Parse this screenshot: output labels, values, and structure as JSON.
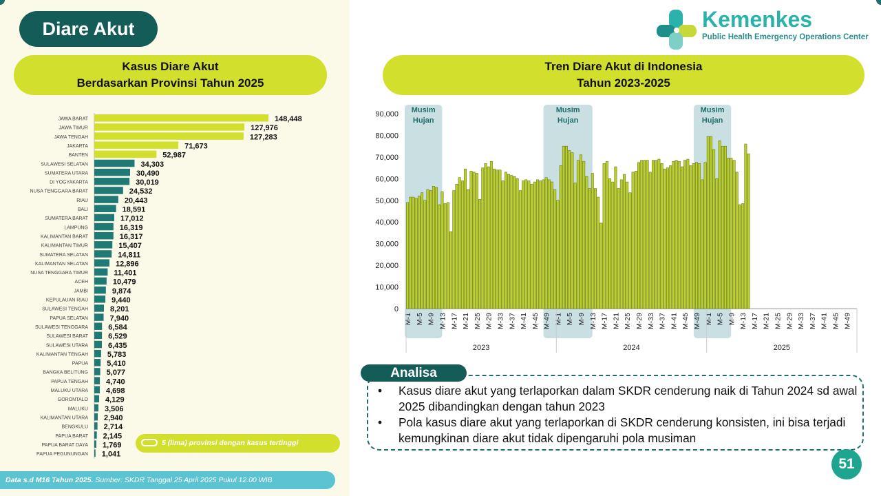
{
  "page": {
    "title": "Diare Akut",
    "page_number": "51"
  },
  "logo": {
    "name": "Kemenkes",
    "tagline": "Public Health Emergency Operations Center"
  },
  "left_chart": {
    "title_line1": "Kasus Diare Akut",
    "title_line2": "Berdasarkan Provinsi Tahun 2025"
  },
  "right_chart": {
    "title_line1": "Tren Diare Akut di Indonesia",
    "title_line2": "Tahun 2023-2025"
  },
  "legend": {
    "text": "5 (lima) provinsi dengan kasus tertinggi"
  },
  "footer": {
    "bold": "Data s.d M16 Tahun 2025.",
    "rest": " Sumber: SKDR Tanggal 25 April 2025 Pukul 12.00 WIB"
  },
  "analysis": {
    "title": "Analisa",
    "items": [
      "Kasus diare akut yang terlaporkan dalam SKDR cenderung naik di Tahun 2024 sd awal 2025 dibandingkan dengan tahun 2023",
      "Pola kasus diare akut yang terlaporkan di SKDR cenderung konsisten, ini bisa terjadi kemungkinan diare akut tidak dipengaruhi pola musiman"
    ]
  },
  "colors": {
    "teal_dark": "#135c58",
    "teal": "#1f7a76",
    "lime": "#d2e02d",
    "bar_green": "#bccf2a",
    "footer_blue": "#5bc3d1",
    "season_band": "#c9dfe2"
  },
  "chart_data": [
    {
      "type": "bar",
      "orientation": "horizontal",
      "categories": [
        "JAWA BARAT",
        "JAWA TIMUR",
        "JAWA TENGAH",
        "JAKARTA",
        "BANTEN",
        "SULAWESI SELATAN",
        "SUMATERA UTARA",
        "DI YOGYAKARTA",
        "NUSA TENGGARA BARAT",
        "RIAU",
        "BALI",
        "SUMATERA BARAT",
        "LAMPUNG",
        "KALIMANTAN BARAT",
        "KALIMANTAN TIMUR",
        "SUMATERA SELATAN",
        "KALIMANTAN SELATAN",
        "NUSA TENGGARA TIMUR",
        "ACEH",
        "JAMBI",
        "KEPULAUAN RIAU",
        "SULAWESI TENGAH",
        "PAPUA SELATAN",
        "SULAWESI TENGGARA",
        "SULAWESI BARAT",
        "SULAWESI UTARA",
        "KALIMANTAN TENGAH",
        "PAPUA",
        "BANGKA BELITUNG",
        "PAPUA TENGAH",
        "MALUKU UTARA",
        "GORONTALO",
        "MALUKU",
        "KALIMANTAN UTARA",
        "BENGKULU",
        "PAPUA BARAT",
        "PAPUA BARAT DAYA",
        "PAPUA PEGUNUNGAN"
      ],
      "values": [
        148448,
        127976,
        127283,
        71673,
        52987,
        34303,
        30490,
        30019,
        24532,
        20443,
        18591,
        17012,
        16319,
        16317,
        15407,
        14811,
        12896,
        11401,
        10479,
        9874,
        9440,
        8201,
        7940,
        6584,
        6529,
        6435,
        5783,
        5410,
        5077,
        4740,
        4698,
        4129,
        3506,
        2940,
        2714,
        2145,
        1769,
        1041
      ],
      "labels": [
        "148,448",
        "127,976",
        "127,283",
        "71,673",
        "52,987",
        "34,303",
        "30,490",
        "30,019",
        "24,532",
        "20,443",
        "18,591",
        "17,012",
        "16,319",
        "16,317",
        "15,407",
        "14,811",
        "12,896",
        "11,401",
        "10,479",
        "9,874",
        "9,440",
        "8,201",
        "7,940",
        "6,584",
        "6,529",
        "6,435",
        "5,783",
        "5,410",
        "5,077",
        "4,740",
        "4,698",
        "4,129",
        "3,506",
        "2,940",
        "2,714",
        "2,145",
        "1,769",
        "1,041"
      ],
      "highlight_top": 5,
      "highlight_color": "#d2e02d",
      "base_color": "#1f7a76"
    },
    {
      "type": "bar",
      "ylim": [
        0,
        90000
      ],
      "yticks": [
        0,
        10000,
        20000,
        30000,
        40000,
        50000,
        60000,
        70000,
        80000,
        90000
      ],
      "ytick_labels": [
        "0",
        "10,000",
        "20,000",
        "30,000",
        "40,000",
        "50,000",
        "60,000",
        "70,000",
        "80,000",
        "90,000"
      ],
      "years": [
        "2023",
        "2024",
        "2025"
      ],
      "weeks_per_year": 52,
      "xtick_labels": [
        "M-1",
        "M-5",
        "M-9",
        "M-13",
        "M-17",
        "M-21",
        "M-25",
        "M-29",
        "M-33",
        "M-37",
        "M-41",
        "M-45",
        "M-49"
      ],
      "seasons": [
        {
          "label_line1": "Musim",
          "label_line2": "Hujan",
          "start_index": 0,
          "end_index": 11
        },
        {
          "label_line1": "Musim",
          "label_line2": "Hujan",
          "start_index": 48,
          "end_index": 63
        },
        {
          "label_line1": "Musim",
          "label_line2": "Hujan",
          "start_index": 100,
          "end_index": 111
        }
      ],
      "series": [
        {
          "year": "2023",
          "values": [
            49000,
            51500,
            51500,
            51000,
            52000,
            53500,
            50000,
            55000,
            54500,
            56500,
            56000,
            48000,
            54000,
            48500,
            49000,
            35500,
            54500,
            57500,
            60500,
            59000,
            64500,
            55000,
            63500,
            63000,
            62500,
            50500,
            65000,
            67000,
            65500,
            68000,
            64500,
            64000,
            64000,
            59000,
            63000,
            62000,
            61500,
            61000,
            60000,
            54500,
            59000,
            59500,
            59000,
            57500,
            58500,
            59500,
            59000,
            59500,
            60500,
            59500,
            58500,
            55000
          ]
        },
        {
          "year": "2024",
          "values": [
            50000,
            66000,
            75000,
            75000,
            73000,
            72000,
            58000,
            68500,
            71000,
            68000,
            61000,
            55500,
            62500,
            55500,
            51500,
            39500,
            67000,
            68000,
            60000,
            58500,
            65500,
            55500,
            59500,
            62000,
            58500,
            53500,
            63000,
            63500,
            67500,
            68500,
            68500,
            68500,
            63000,
            68500,
            68500,
            69000,
            67000,
            64500,
            65000,
            66000,
            68000,
            68500,
            68000,
            65500,
            68500,
            69000,
            66000,
            67000,
            67500,
            67000,
            59500,
            67500
          ]
        },
        {
          "year": "2025",
          "values": [
            79500,
            79500,
            73500,
            60000,
            77500,
            75000,
            75000,
            69500,
            69500,
            68500,
            63000,
            48000,
            48500,
            76000,
            71500
          ]
        }
      ]
    }
  ]
}
